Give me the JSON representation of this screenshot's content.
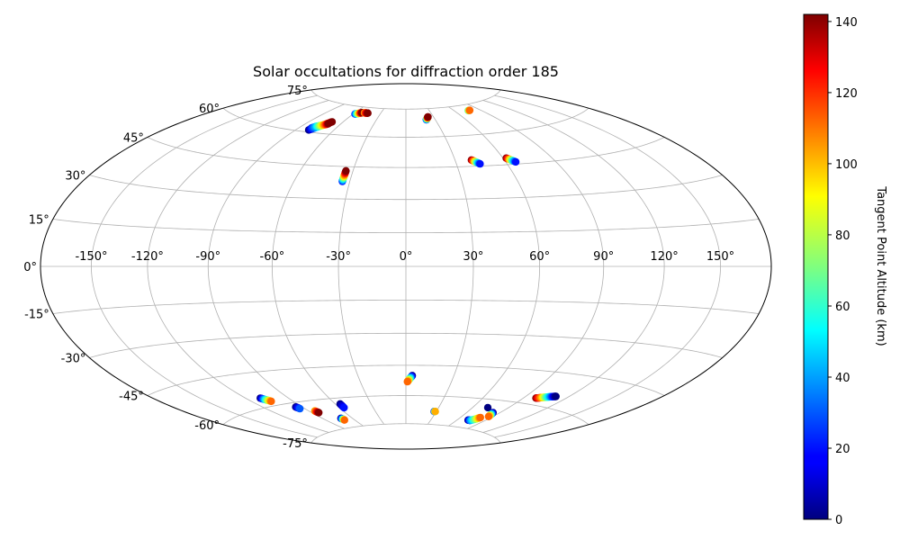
{
  "chart_data": {
    "type": "scatter",
    "projection": "hammer",
    "title": "Solar occultations for diffraction order 185",
    "grid": true,
    "x_ticks": [
      "-150°",
      "-120°",
      "-90°",
      "-60°",
      "-30°",
      "0°",
      "30°",
      "60°",
      "90°",
      "120°",
      "150°"
    ],
    "x_tick_values": [
      -150,
      -120,
      -90,
      -60,
      -30,
      0,
      30,
      60,
      90,
      120,
      150
    ],
    "y_ticks": [
      "-75°",
      "-60°",
      "-45°",
      "-30°",
      "-15°",
      "0°",
      "15°",
      "30°",
      "45°",
      "60°",
      "75°"
    ],
    "y_tick_values": [
      -75,
      -60,
      -45,
      -30,
      -15,
      0,
      15,
      30,
      45,
      60,
      75
    ],
    "colorbar": {
      "label": "Tangent Point Altitude (km)",
      "colormap": "jet",
      "range": [
        0,
        142
      ],
      "ticks": [
        "0",
        "20",
        "40",
        "60",
        "80",
        "100",
        "120",
        "140"
      ],
      "tick_values": [
        0,
        20,
        40,
        60,
        80,
        100,
        120,
        140
      ]
    },
    "series": [
      {
        "lon": [
          -80,
          -78,
          -76,
          -74,
          -72,
          -70
        ],
        "lat": [
          61,
          62,
          63,
          64,
          65,
          66
        ],
        "alt_start": 0,
        "alt_end": 142
      },
      {
        "lon": [
          -80,
          -78,
          -76,
          -74,
          -72,
          -71
        ],
        "lat": [
          62,
          63,
          63.5,
          64,
          64.5,
          65
        ],
        "alt_start": 20,
        "alt_end": 142
      },
      {
        "lon": [
          -58,
          -56,
          -54,
          -52
        ],
        "lat": [
          71,
          71.3,
          71.6,
          72
        ],
        "alt_start": 20,
        "alt_end": 142
      },
      {
        "lon": [
          -49,
          -47,
          -45
        ],
        "lat": [
          72,
          72,
          72
        ],
        "alt_start": 100,
        "alt_end": 142
      },
      {
        "lon": [
          -34,
          -34,
          -34,
          -34
        ],
        "lat": [
          38,
          39.5,
          41,
          43
        ],
        "alt_start": 20,
        "alt_end": 142
      },
      {
        "lon": [
          21,
          22,
          23,
          24
        ],
        "lat": [
          69,
          69.5,
          70,
          70.5
        ],
        "alt_start": 20,
        "alt_end": 142
      },
      {
        "lon": [
          40,
          42,
          44
        ],
        "lat": [
          48,
          47,
          46
        ],
        "alt_start": 142,
        "alt_end": 20
      },
      {
        "lon": [
          62,
          64,
          66
        ],
        "lat": [
          48,
          47,
          46
        ],
        "alt_start": 142,
        "alt_end": 20
      },
      {
        "lon": [
          76,
          78
        ],
        "lat": [
          72,
          72
        ],
        "alt_start": 60,
        "alt_end": 110
      },
      {
        "lon": [
          -110,
          -108,
          -106
        ],
        "lat": [
          -56,
          -57,
          -58
        ],
        "alt_start": 0,
        "alt_end": 110
      },
      {
        "lon": [
          -95,
          -94
        ],
        "lat": [
          -62,
          -63
        ],
        "alt_start": 0,
        "alt_end": 30
      },
      {
        "lon": [
          -85,
          -84
        ],
        "lat": [
          -65,
          -66
        ],
        "alt_start": 100,
        "alt_end": 142
      },
      {
        "lon": [
          -72,
          -71
        ],
        "lat": [
          -70,
          -71
        ],
        "alt_start": 0,
        "alt_end": 110
      },
      {
        "lon": [
          -56,
          -56
        ],
        "lat": [
          -63,
          -65
        ],
        "alt_start": 0,
        "alt_end": 20
      },
      {
        "lon": [
          4,
          3,
          2,
          1
        ],
        "lat": [
          -50,
          -51,
          -52,
          -53
        ],
        "alt_start": 0,
        "alt_end": 110
      },
      {
        "lon": [
          28,
          29
        ],
        "lat": [
          -68,
          -68
        ],
        "alt_start": 0,
        "alt_end": 100
      },
      {
        "lon": [
          72,
          75,
          78,
          80
        ],
        "lat": [
          -71,
          -71,
          -70,
          -69
        ],
        "alt_start": 0,
        "alt_end": 110
      },
      {
        "lon": [
          84,
          85,
          86
        ],
        "lat": [
          -66,
          -67,
          -68
        ],
        "alt_start": 0,
        "alt_end": 110
      },
      {
        "lon": [
          73
        ],
        "lat": [
          -64
        ],
        "alt_start": 0,
        "alt_end": 0
      },
      {
        "lon": [
          99,
          101,
          103,
          105,
          107,
          109,
          111
        ],
        "lat": [
          -57,
          -56.7,
          -56.3,
          -56,
          -55.6,
          -55.3,
          -55
        ],
        "alt_start": 142,
        "alt_end": 0
      }
    ]
  }
}
